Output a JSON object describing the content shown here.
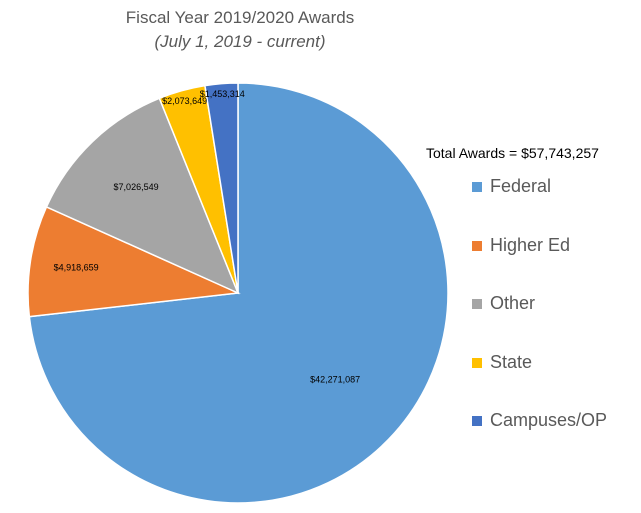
{
  "chart_data": {
    "type": "pie",
    "title": "Fiscal Year 2019/2020 Awards",
    "subtitle": "(July 1, 2019 - current)",
    "total_label": "Total Awards = $57,743,257",
    "categories": [
      "Federal",
      "Higher Ed",
      "Other",
      "State",
      "Campuses/OP"
    ],
    "values": [
      42271087,
      4918659,
      7026549,
      2073649,
      1453314
    ],
    "data_labels": [
      "$42,271,087",
      "$4,918,659",
      "$7,026,549",
      "$2,073,649",
      "$1,453,314"
    ],
    "colors": [
      "#5b9bd5",
      "#ed7d31",
      "#a5a5a5",
      "#ffc000",
      "#4472c4"
    ],
    "legend_position": "right"
  }
}
